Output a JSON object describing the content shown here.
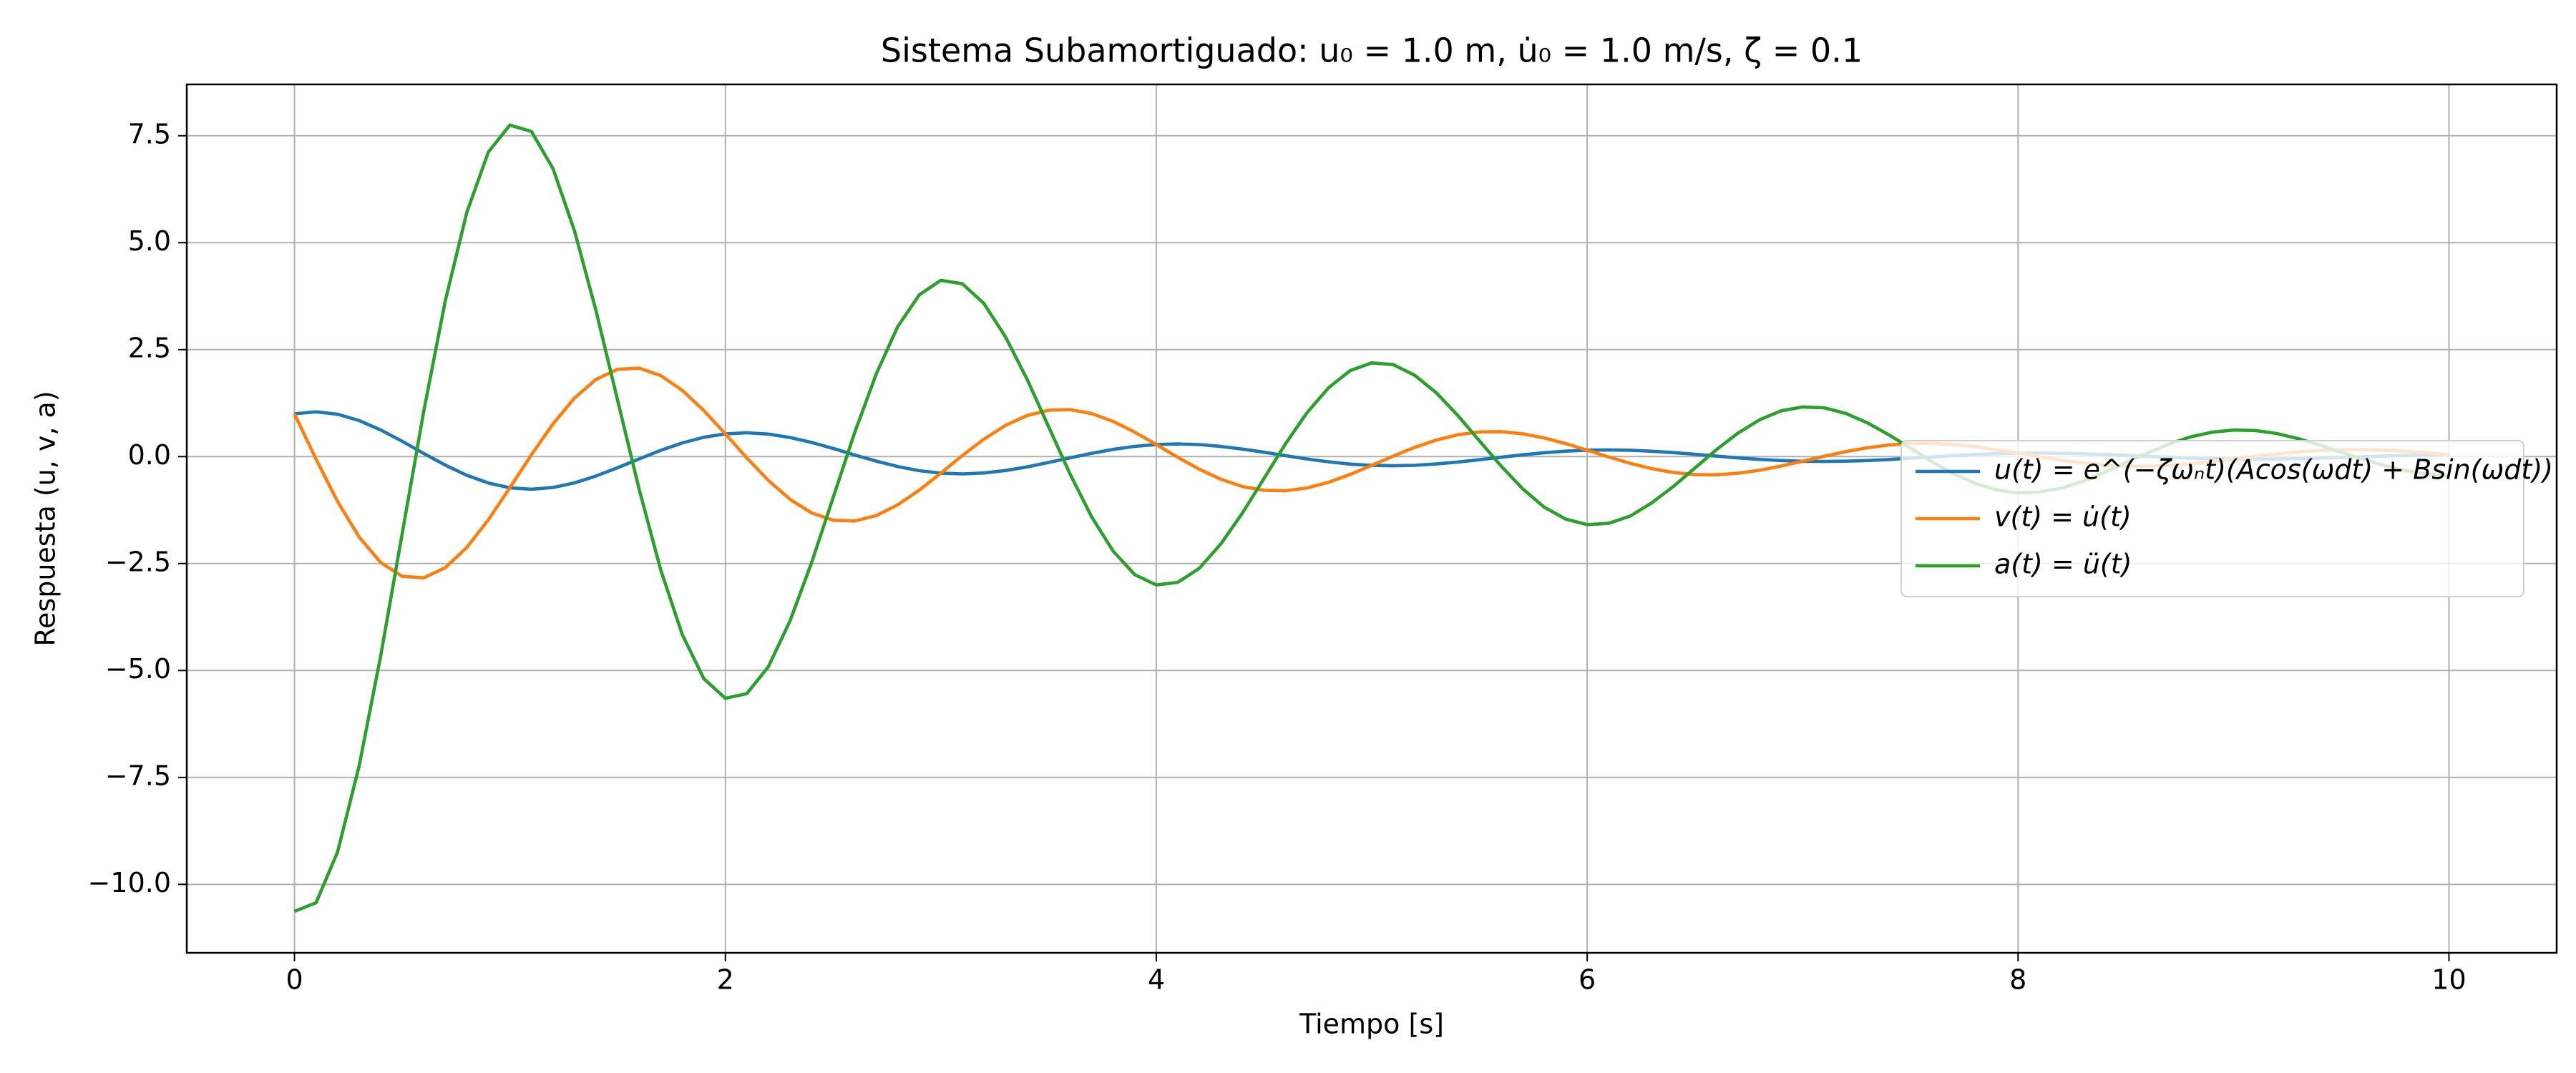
{
  "chart_data": {
    "type": "line",
    "title": "Sistema Subamortiguado: u₀ = 1.0 m, u̇₀ = 1.0 m/s, ζ = 0.1",
    "xlabel": "Tiempo [s]",
    "ylabel": "Respuesta (u, v, a)",
    "x": [
      0,
      0.1,
      0.2,
      0.3,
      0.4,
      0.5,
      0.6,
      0.7,
      0.8,
      0.9,
      1,
      1.1,
      1.2,
      1.3,
      1.4,
      1.5,
      1.6,
      1.7,
      1.8,
      1.9,
      2,
      2.1,
      2.2,
      2.3,
      2.4,
      2.5,
      2.6,
      2.7,
      2.8,
      2.9,
      3,
      3.1,
      3.2,
      3.3,
      3.4,
      3.5,
      3.6,
      3.7,
      3.8,
      3.9,
      4,
      4.1,
      4.2,
      4.3,
      4.4,
      4.5,
      4.6,
      4.7,
      4.8,
      4.9,
      5,
      5.1,
      5.2,
      5.3,
      5.4,
      5.5,
      5.6,
      5.7,
      5.8,
      5.9,
      6,
      6.1,
      6.2,
      6.3,
      6.4,
      6.5,
      6.6,
      6.7,
      6.8,
      6.9,
      7,
      7.1,
      7.2,
      7.3,
      7.4,
      7.5,
      7.6,
      7.7,
      7.8,
      7.9,
      8,
      8.1,
      8.2,
      8.3,
      8.4,
      8.5,
      8.6,
      8.7,
      8.8,
      8.9,
      9,
      9.1,
      9.2,
      9.3,
      9.4,
      9.5,
      9.6,
      9.7,
      9.8,
      9.9,
      10
    ],
    "series": [
      {
        "name": "u(t) = e^(−ζωₙt)(Acos(ωdt) + Bsin(ωdt))",
        "color": "#1f77b4",
        "values": [
          1.0,
          1.047,
          0.99,
          0.842,
          0.623,
          0.357,
          0.073,
          -0.2,
          -0.437,
          -0.618,
          -0.729,
          -0.763,
          -0.722,
          -0.614,
          -0.454,
          -0.26,
          -0.053,
          0.146,
          0.319,
          0.451,
          0.531,
          0.556,
          0.526,
          0.447,
          0.331,
          0.19,
          0.039,
          -0.106,
          -0.232,
          -0.329,
          -0.387,
          -0.405,
          -0.383,
          -0.326,
          -0.241,
          -0.138,
          -0.028,
          0.077,
          0.169,
          0.239,
          0.282,
          0.295,
          0.28,
          0.238,
          0.176,
          0.101,
          0.021,
          -0.056,
          -0.123,
          -0.175,
          -0.206,
          -0.215,
          -0.204,
          -0.173,
          -0.128,
          -0.073,
          -0.015,
          0.041,
          0.09,
          0.127,
          0.15,
          0.157,
          0.149,
          0.126,
          0.093,
          0.054,
          0.011,
          -0.03,
          -0.066,
          -0.093,
          -0.109,
          -0.114,
          -0.108,
          -0.092,
          -0.068,
          -0.039,
          -0.008,
          0.022,
          0.048,
          0.068,
          0.08,
          0.083,
          0.079,
          0.067,
          0.05,
          0.028,
          0.006,
          -0.016,
          -0.035,
          -0.049,
          -0.058,
          -0.061,
          -0.057,
          -0.049,
          -0.036,
          -0.021,
          -0.004,
          0.012,
          0.025,
          0.036,
          0.042
        ]
      },
      {
        "name": "v(t) = u̇(t)",
        "color": "#ff7f0e",
        "values": [
          1.0,
          -0.061,
          -1.05,
          -1.879,
          -2.476,
          -2.799,
          -2.835,
          -2.597,
          -2.124,
          -1.477,
          -0.728,
          0.044,
          0.766,
          1.369,
          1.805,
          2.041,
          2.066,
          1.893,
          1.548,
          1.077,
          0.531,
          -0.032,
          -0.558,
          -0.998,
          -1.316,
          -1.487,
          -1.506,
          -1.38,
          -1.128,
          -0.785,
          -0.387,
          0.024,
          0.407,
          0.728,
          0.959,
          1.084,
          1.098,
          1.006,
          0.822,
          0.572,
          0.282,
          -0.017,
          -0.297,
          -0.53,
          -0.699,
          -0.79,
          -0.8,
          -0.733,
          -0.6,
          -0.417,
          -0.206,
          0.012,
          0.216,
          0.386,
          0.509,
          0.576,
          0.583,
          0.534,
          0.437,
          0.304,
          0.15,
          -0.009,
          -0.158,
          -0.282,
          -0.371,
          -0.42,
          -0.425,
          -0.39,
          -0.319,
          -0.221,
          -0.109,
          0.007,
          0.115,
          0.205,
          0.271,
          0.306,
          0.31,
          0.284,
          0.232,
          0.161,
          0.08,
          -0.005,
          -0.084,
          -0.15,
          -0.197,
          -0.223,
          -0.226,
          -0.207,
          -0.169,
          -0.118,
          -0.058,
          0.004,
          0.061,
          0.109,
          0.144,
          0.163,
          0.165,
          0.151,
          0.123,
          0.086,
          0.042
        ]
      },
      {
        "name": "a(t) = ü(t)",
        "color": "#2ca02c",
        "values": [
          -10.63,
          -10.43,
          -9.24,
          -7.23,
          -4.66,
          -1.8,
          1.06,
          3.64,
          5.71,
          7.12,
          7.75,
          7.6,
          6.73,
          5.27,
          3.4,
          1.31,
          -0.77,
          -2.65,
          -4.16,
          -5.19,
          -5.65,
          -5.54,
          -4.91,
          -3.84,
          -2.48,
          -0.96,
          0.56,
          1.93,
          3.04,
          3.78,
          4.12,
          4.04,
          3.58,
          2.8,
          1.81,
          0.7,
          -0.41,
          -1.41,
          -2.21,
          -2.76,
          -3.0,
          -2.94,
          -2.61,
          -2.04,
          -1.32,
          -0.51,
          0.3,
          1.03,
          1.61,
          2.01,
          2.19,
          2.15,
          1.9,
          1.49,
          0.96,
          0.37,
          -0.22,
          -0.75,
          -1.18,
          -1.46,
          -1.59,
          -1.56,
          -1.39,
          -1.08,
          -0.7,
          -0.27,
          0.16,
          0.55,
          0.86,
          1.07,
          1.16,
          1.14,
          1.01,
          0.79,
          0.51,
          0.2,
          -0.12,
          -0.4,
          -0.62,
          -0.78,
          -0.85,
          -0.83,
          -0.74,
          -0.58,
          -0.37,
          -0.14,
          0.08,
          0.29,
          0.46,
          0.57,
          0.62,
          0.61,
          0.54,
          0.42,
          0.27,
          0.1,
          -0.06,
          -0.21,
          -0.33,
          -0.41,
          -0.45
        ]
      }
    ],
    "xlim": [
      -0.5,
      10.5
    ],
    "ylim": [
      -11.6,
      8.7
    ],
    "xticks": [
      0,
      2,
      4,
      6,
      8,
      10
    ],
    "yticks": [
      {
        "value": -10,
        "label": "−10.0"
      },
      {
        "value": -7.5,
        "label": "−7.5"
      },
      {
        "value": -5,
        "label": "−5.0"
      },
      {
        "value": -2.5,
        "label": "−2.5"
      },
      {
        "value": 0,
        "label": "0.0"
      },
      {
        "value": 2.5,
        "label": "2.5"
      },
      {
        "value": 5,
        "label": "5.0"
      },
      {
        "value": 7.5,
        "label": "7.5"
      }
    ],
    "grid": true,
    "legend": "center right"
  }
}
